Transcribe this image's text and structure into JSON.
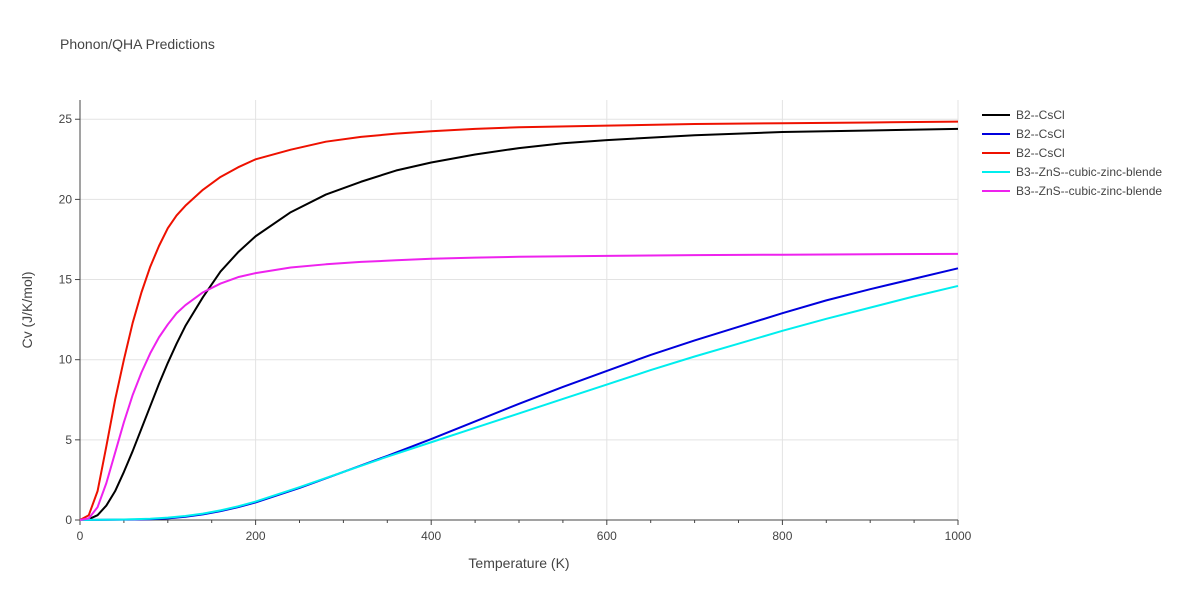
{
  "chart_data": {
    "type": "line",
    "title": "Phonon/QHA Predictions",
    "xlabel": "Temperature (K)",
    "ylabel": "Cv (J/K/mol)",
    "xlim": [
      0,
      1000
    ],
    "ylim": [
      0,
      26.2
    ],
    "xticks": [
      0,
      200,
      400,
      600,
      800,
      1000
    ],
    "yticks": [
      0,
      5,
      10,
      15,
      20,
      25
    ],
    "grid": true,
    "legend_position": "right",
    "series": [
      {
        "name": "B2--CsCl",
        "color": "#000000",
        "x": [
          0,
          10,
          20,
          30,
          40,
          50,
          60,
          70,
          80,
          90,
          100,
          110,
          120,
          140,
          160,
          180,
          200,
          240,
          280,
          320,
          360,
          400,
          450,
          500,
          550,
          600,
          700,
          800,
          900,
          1000
        ],
        "y": [
          0,
          0.05,
          0.3,
          0.9,
          1.8,
          3.0,
          4.3,
          5.7,
          7.1,
          8.5,
          9.8,
          11.0,
          12.1,
          13.9,
          15.5,
          16.7,
          17.7,
          19.2,
          20.3,
          21.1,
          21.8,
          22.3,
          22.8,
          23.2,
          23.5,
          23.7,
          24.0,
          24.2,
          24.3,
          24.4
        ]
      },
      {
        "name": "B2--CsCl",
        "color": "#0000dd",
        "x": [
          0,
          50,
          80,
          100,
          120,
          140,
          160,
          180,
          200,
          250,
          300,
          350,
          400,
          450,
          500,
          550,
          600,
          650,
          700,
          750,
          800,
          850,
          900,
          950,
          1000
        ],
        "y": [
          0,
          0.02,
          0.05,
          0.1,
          0.2,
          0.35,
          0.55,
          0.8,
          1.1,
          2.0,
          3.0,
          4.0,
          5.05,
          6.15,
          7.25,
          8.3,
          9.3,
          10.3,
          11.2,
          12.05,
          12.9,
          13.7,
          14.4,
          15.05,
          15.7
        ]
      },
      {
        "name": "B2--CsCl",
        "color": "#ee1100",
        "x": [
          0,
          10,
          20,
          30,
          40,
          50,
          60,
          70,
          80,
          90,
          100,
          110,
          120,
          140,
          160,
          180,
          200,
          240,
          280,
          320,
          360,
          400,
          450,
          500,
          600,
          700,
          800,
          900,
          1000
        ],
        "y": [
          0,
          0.3,
          1.8,
          4.6,
          7.5,
          10.0,
          12.3,
          14.2,
          15.8,
          17.1,
          18.2,
          19.0,
          19.6,
          20.6,
          21.4,
          22.0,
          22.5,
          23.1,
          23.6,
          23.9,
          24.1,
          24.25,
          24.4,
          24.5,
          24.6,
          24.7,
          24.75,
          24.8,
          24.85
        ]
      },
      {
        "name": "B3--ZnS--cubic-zinc-blende",
        "color": "#00eeee",
        "x": [
          0,
          50,
          80,
          100,
          120,
          140,
          160,
          180,
          200,
          250,
          300,
          350,
          400,
          450,
          500,
          550,
          600,
          650,
          700,
          750,
          800,
          850,
          900,
          950,
          1000
        ],
        "y": [
          0,
          0.03,
          0.08,
          0.15,
          0.25,
          0.4,
          0.6,
          0.85,
          1.15,
          2.05,
          3.0,
          3.95,
          4.85,
          5.75,
          6.65,
          7.55,
          8.45,
          9.35,
          10.2,
          11.0,
          11.8,
          12.55,
          13.25,
          13.95,
          14.6
        ]
      },
      {
        "name": "B3--ZnS--cubic-zinc-blende",
        "color": "#ee22ee",
        "x": [
          0,
          10,
          20,
          30,
          40,
          50,
          60,
          70,
          80,
          90,
          100,
          110,
          120,
          140,
          160,
          180,
          200,
          240,
          280,
          320,
          360,
          400,
          450,
          500,
          600,
          700,
          800,
          900,
          1000
        ],
        "y": [
          0,
          0.1,
          0.8,
          2.3,
          4.2,
          6.1,
          7.8,
          9.2,
          10.4,
          11.4,
          12.2,
          12.9,
          13.4,
          14.2,
          14.75,
          15.15,
          15.4,
          15.75,
          15.95,
          16.1,
          16.2,
          16.3,
          16.37,
          16.42,
          16.48,
          16.52,
          16.55,
          16.58,
          16.6
        ]
      }
    ]
  }
}
